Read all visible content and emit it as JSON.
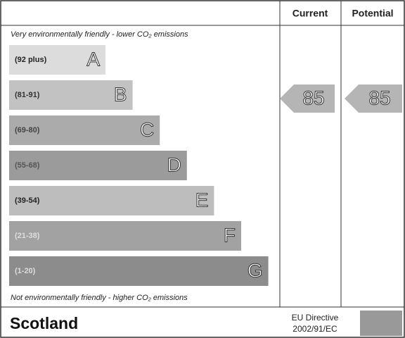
{
  "header": {
    "columns": [
      "Current",
      "Potential"
    ]
  },
  "top_note": "Very environmentally friendly - lower CO₂ emissions",
  "bottom_note": "Not environmentally friendly - higher CO₂ emissions",
  "bands": [
    {
      "range": "(92 plus)",
      "letter": "A",
      "color": "#dcdcdc",
      "text_color": "#222"
    },
    {
      "range": "(81-91)",
      "letter": "B",
      "color": "#c2c2c2",
      "text_color": "#333"
    },
    {
      "range": "(69-80)",
      "letter": "C",
      "color": "#ababab",
      "text_color": "#444"
    },
    {
      "range": "(55-68)",
      "letter": "D",
      "color": "#9b9b9b",
      "text_color": "#555"
    },
    {
      "range": "(39-54)",
      "letter": "E",
      "color": "#bdbdbd",
      "text_color": "#222"
    },
    {
      "range": "(21-38)",
      "letter": "F",
      "color": "#a2a2a2",
      "text_color": "#ddd"
    },
    {
      "range": "(1-20)",
      "letter": "G",
      "color": "#8c8c8c",
      "text_color": "#ddd"
    }
  ],
  "ratings": {
    "current": 85,
    "potential": 85
  },
  "footer": {
    "region": "Scotland",
    "directive": [
      "EU Directive",
      "2002/91/EC"
    ]
  }
}
